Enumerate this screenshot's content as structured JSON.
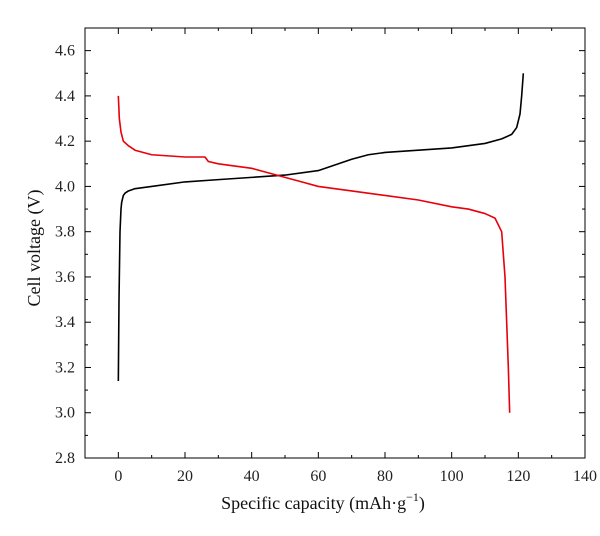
{
  "chart_data": {
    "type": "line",
    "xlabel": "Specific capacity (mAh·g",
    "xlabel_sup": "−1",
    "xlabel_close": ")",
    "ylabel": "Cell voltage (V)",
    "xlim": [
      -10,
      140
    ],
    "ylim": [
      2.8,
      4.7
    ],
    "x_ticks": [
      "0",
      "20",
      "40",
      "60",
      "80",
      "100",
      "120",
      "140"
    ],
    "y_ticks": [
      "2.8",
      "3.0",
      "3.2",
      "3.4",
      "3.6",
      "3.8",
      "4.0",
      "4.2",
      "4.4",
      "4.6"
    ],
    "grid": false,
    "legend": false,
    "colors": {
      "series_0": "#000000",
      "series_1": "#e8000b"
    },
    "series": [
      {
        "color": "#000000",
        "x": [
          0,
          0.2,
          0.5,
          0.8,
          1,
          1.5,
          2,
          3,
          5,
          10,
          20,
          30,
          40,
          50,
          60,
          70,
          75,
          80,
          90,
          100,
          105,
          110,
          115,
          118,
          119.5,
          120.5,
          121,
          121.5
        ],
        "y": [
          3.14,
          3.5,
          3.8,
          3.9,
          3.93,
          3.96,
          3.97,
          3.98,
          3.99,
          4.0,
          4.02,
          4.03,
          4.04,
          4.05,
          4.07,
          4.12,
          4.14,
          4.15,
          4.16,
          4.17,
          4.18,
          4.19,
          4.21,
          4.23,
          4.26,
          4.32,
          4.4,
          4.5
        ]
      },
      {
        "color": "#e8000b",
        "x": [
          0,
          0.3,
          0.8,
          1.5,
          3,
          5,
          10,
          20,
          26,
          27,
          30,
          40,
          50,
          55,
          60,
          70,
          80,
          90,
          100,
          105,
          110,
          113,
          115,
          116,
          116.5,
          117,
          117.2,
          117.4
        ],
        "y": [
          4.4,
          4.3,
          4.24,
          4.2,
          4.18,
          4.16,
          4.14,
          4.13,
          4.13,
          4.11,
          4.1,
          4.08,
          4.04,
          4.02,
          4.0,
          3.98,
          3.96,
          3.94,
          3.91,
          3.9,
          3.88,
          3.86,
          3.8,
          3.6,
          3.4,
          3.2,
          3.1,
          3.0
        ]
      }
    ]
  }
}
